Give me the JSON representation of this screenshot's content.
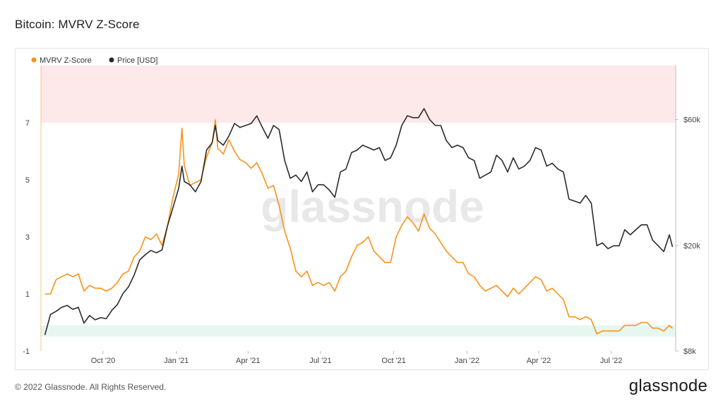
{
  "title": "Bitcoin: MVRV Z-Score",
  "copyright": "© 2022 Glassnode. All Rights Reserved.",
  "brand": "glassnode",
  "watermark": "glassnode",
  "chart_data": {
    "type": "line",
    "x_ticks": [
      "Oct '20",
      "Jan '21",
      "Apr '21",
      "Jul '21",
      "Oct '21",
      "Jan '22",
      "Apr '22",
      "Jul '22"
    ],
    "y_left_ticks": [
      "-1",
      "1",
      "3",
      "5",
      "7"
    ],
    "y_right_ticks": [
      "$8k",
      "$20k",
      "$60k"
    ],
    "zones": {
      "overvalued": {
        "from": 7,
        "to": 9,
        "color": "#fde8ea"
      },
      "undervalued": {
        "from": -0.5,
        "to": -0.1,
        "color": "#e7f7ef"
      }
    },
    "series": [
      {
        "name": "MVRV Z-Score",
        "color": "#f7931a",
        "axis": "left",
        "points": [
          [
            "2020-07-20",
            1.0
          ],
          [
            "2020-07-27",
            1.0
          ],
          [
            "2020-08-03",
            1.5
          ],
          [
            "2020-08-10",
            1.6
          ],
          [
            "2020-08-17",
            1.7
          ],
          [
            "2020-08-24",
            1.6
          ],
          [
            "2020-08-31",
            1.7
          ],
          [
            "2020-09-07",
            1.1
          ],
          [
            "2020-09-14",
            1.3
          ],
          [
            "2020-09-21",
            1.2
          ],
          [
            "2020-09-28",
            1.2
          ],
          [
            "2020-10-05",
            1.1
          ],
          [
            "2020-10-12",
            1.2
          ],
          [
            "2020-10-19",
            1.4
          ],
          [
            "2020-10-26",
            1.7
          ],
          [
            "2020-11-02",
            1.8
          ],
          [
            "2020-11-09",
            2.3
          ],
          [
            "2020-11-16",
            2.5
          ],
          [
            "2020-11-23",
            3.0
          ],
          [
            "2020-11-30",
            2.9
          ],
          [
            "2020-12-07",
            3.1
          ],
          [
            "2020-12-14",
            2.7
          ],
          [
            "2020-12-21",
            3.4
          ],
          [
            "2020-12-28",
            4.4
          ],
          [
            "2021-01-04",
            5.2
          ],
          [
            "2021-01-08",
            6.8
          ],
          [
            "2021-01-11",
            5.5
          ],
          [
            "2021-01-18",
            4.8
          ],
          [
            "2021-01-25",
            4.9
          ],
          [
            "2021-02-01",
            5.0
          ],
          [
            "2021-02-08",
            5.8
          ],
          [
            "2021-02-15",
            6.3
          ],
          [
            "2021-02-19",
            7.1
          ],
          [
            "2021-02-22",
            6.1
          ],
          [
            "2021-03-01",
            5.9
          ],
          [
            "2021-03-08",
            6.4
          ],
          [
            "2021-03-15",
            6.0
          ],
          [
            "2021-03-22",
            5.7
          ],
          [
            "2021-03-29",
            5.6
          ],
          [
            "2021-04-05",
            5.4
          ],
          [
            "2021-04-12",
            5.6
          ],
          [
            "2021-04-19",
            5.2
          ],
          [
            "2021-04-26",
            4.7
          ],
          [
            "2021-05-03",
            4.8
          ],
          [
            "2021-05-10",
            4.1
          ],
          [
            "2021-05-17",
            3.2
          ],
          [
            "2021-05-24",
            2.6
          ],
          [
            "2021-05-31",
            1.8
          ],
          [
            "2021-06-07",
            1.6
          ],
          [
            "2021-06-14",
            1.8
          ],
          [
            "2021-06-21",
            1.3
          ],
          [
            "2021-06-28",
            1.4
          ],
          [
            "2021-07-05",
            1.3
          ],
          [
            "2021-07-12",
            1.4
          ],
          [
            "2021-07-19",
            1.1
          ],
          [
            "2021-07-26",
            1.6
          ],
          [
            "2021-08-02",
            1.8
          ],
          [
            "2021-08-09",
            2.3
          ],
          [
            "2021-08-16",
            2.7
          ],
          [
            "2021-08-23",
            2.8
          ],
          [
            "2021-08-30",
            3.0
          ],
          [
            "2021-09-06",
            2.5
          ],
          [
            "2021-09-13",
            2.3
          ],
          [
            "2021-09-20",
            2.1
          ],
          [
            "2021-09-27",
            2.1
          ],
          [
            "2021-10-04",
            3.0
          ],
          [
            "2021-10-11",
            3.4
          ],
          [
            "2021-10-18",
            3.7
          ],
          [
            "2021-10-25",
            3.5
          ],
          [
            "2021-11-01",
            3.2
          ],
          [
            "2021-11-08",
            3.8
          ],
          [
            "2021-11-15",
            3.3
          ],
          [
            "2021-11-22",
            3.1
          ],
          [
            "2021-11-29",
            2.8
          ],
          [
            "2021-12-06",
            2.5
          ],
          [
            "2021-12-13",
            2.3
          ],
          [
            "2021-12-20",
            2.1
          ],
          [
            "2021-12-27",
            2.1
          ],
          [
            "2022-01-03",
            1.7
          ],
          [
            "2022-01-10",
            1.6
          ],
          [
            "2022-01-17",
            1.3
          ],
          [
            "2022-01-24",
            1.1
          ],
          [
            "2022-01-31",
            1.2
          ],
          [
            "2022-02-07",
            1.3
          ],
          [
            "2022-02-14",
            1.1
          ],
          [
            "2022-02-21",
            0.9
          ],
          [
            "2022-02-28",
            1.2
          ],
          [
            "2022-03-07",
            1.0
          ],
          [
            "2022-03-14",
            1.2
          ],
          [
            "2022-03-21",
            1.4
          ],
          [
            "2022-03-28",
            1.6
          ],
          [
            "2022-04-04",
            1.5
          ],
          [
            "2022-04-11",
            1.1
          ],
          [
            "2022-04-18",
            1.2
          ],
          [
            "2022-04-25",
            1.0
          ],
          [
            "2022-05-02",
            0.8
          ],
          [
            "2022-05-09",
            0.2
          ],
          [
            "2022-05-16",
            0.2
          ],
          [
            "2022-05-23",
            0.1
          ],
          [
            "2022-05-30",
            0.2
          ],
          [
            "2022-06-06",
            0.1
          ],
          [
            "2022-06-13",
            -0.4
          ],
          [
            "2022-06-20",
            -0.3
          ],
          [
            "2022-06-27",
            -0.3
          ],
          [
            "2022-07-04",
            -0.3
          ],
          [
            "2022-07-11",
            -0.3
          ],
          [
            "2022-07-18",
            -0.1
          ],
          [
            "2022-07-25",
            -0.1
          ],
          [
            "2022-08-01",
            -0.1
          ],
          [
            "2022-08-08",
            0.0
          ],
          [
            "2022-08-15",
            0.0
          ],
          [
            "2022-08-22",
            -0.2
          ],
          [
            "2022-08-29",
            -0.2
          ],
          [
            "2022-09-05",
            -0.3
          ],
          [
            "2022-09-12",
            -0.1
          ],
          [
            "2022-09-16",
            -0.2
          ]
        ]
      },
      {
        "name": "Price [USD]",
        "color": "#2b2b2b",
        "axis": "right",
        "points": [
          [
            "2020-07-20",
            9200
          ],
          [
            "2020-07-27",
            11000
          ],
          [
            "2020-08-03",
            11300
          ],
          [
            "2020-08-10",
            11700
          ],
          [
            "2020-08-17",
            11900
          ],
          [
            "2020-08-24",
            11500
          ],
          [
            "2020-08-31",
            11700
          ],
          [
            "2020-09-07",
            10200
          ],
          [
            "2020-09-14",
            10900
          ],
          [
            "2020-09-21",
            10500
          ],
          [
            "2020-09-28",
            10700
          ],
          [
            "2020-10-05",
            10600
          ],
          [
            "2020-10-12",
            11400
          ],
          [
            "2020-10-19",
            12000
          ],
          [
            "2020-10-26",
            13200
          ],
          [
            "2020-11-02",
            14000
          ],
          [
            "2020-11-09",
            15500
          ],
          [
            "2020-11-16",
            17700
          ],
          [
            "2020-11-23",
            18500
          ],
          [
            "2020-11-30",
            19200
          ],
          [
            "2020-12-07",
            18800
          ],
          [
            "2020-12-14",
            19300
          ],
          [
            "2020-12-21",
            23800
          ],
          [
            "2020-12-28",
            28000
          ],
          [
            "2021-01-04",
            33000
          ],
          [
            "2021-01-08",
            40000
          ],
          [
            "2021-01-11",
            35000
          ],
          [
            "2021-01-18",
            34000
          ],
          [
            "2021-01-25",
            32000
          ],
          [
            "2021-02-01",
            35000
          ],
          [
            "2021-02-08",
            46000
          ],
          [
            "2021-02-15",
            49000
          ],
          [
            "2021-02-19",
            57000
          ],
          [
            "2021-02-22",
            50000
          ],
          [
            "2021-03-01",
            48000
          ],
          [
            "2021-03-08",
            52000
          ],
          [
            "2021-03-15",
            58000
          ],
          [
            "2021-03-22",
            56000
          ],
          [
            "2021-03-29",
            57000
          ],
          [
            "2021-04-05",
            58000
          ],
          [
            "2021-04-12",
            62000
          ],
          [
            "2021-04-19",
            56000
          ],
          [
            "2021-04-26",
            51000
          ],
          [
            "2021-05-03",
            57000
          ],
          [
            "2021-05-10",
            55000
          ],
          [
            "2021-05-17",
            42000
          ],
          [
            "2021-05-24",
            36000
          ],
          [
            "2021-05-31",
            37000
          ],
          [
            "2021-06-07",
            35000
          ],
          [
            "2021-06-14",
            38000
          ],
          [
            "2021-06-21",
            32000
          ],
          [
            "2021-06-28",
            34000
          ],
          [
            "2021-07-05",
            34000
          ],
          [
            "2021-07-12",
            32500
          ],
          [
            "2021-07-19",
            30500
          ],
          [
            "2021-07-26",
            38000
          ],
          [
            "2021-08-02",
            39000
          ],
          [
            "2021-08-09",
            45000
          ],
          [
            "2021-08-16",
            46000
          ],
          [
            "2021-08-23",
            48000
          ],
          [
            "2021-08-30",
            47000
          ],
          [
            "2021-09-06",
            46000
          ],
          [
            "2021-09-13",
            47000
          ],
          [
            "2021-09-20",
            42000
          ],
          [
            "2021-09-27",
            43000
          ],
          [
            "2021-10-04",
            48000
          ],
          [
            "2021-10-11",
            57000
          ],
          [
            "2021-10-18",
            62000
          ],
          [
            "2021-10-25",
            61000
          ],
          [
            "2021-11-01",
            61000
          ],
          [
            "2021-11-08",
            66000
          ],
          [
            "2021-11-15",
            60000
          ],
          [
            "2021-11-22",
            57000
          ],
          [
            "2021-11-29",
            57000
          ],
          [
            "2021-12-06",
            50000
          ],
          [
            "2021-12-13",
            47000
          ],
          [
            "2021-12-20",
            48000
          ],
          [
            "2021-12-27",
            47000
          ],
          [
            "2022-01-03",
            43000
          ],
          [
            "2022-01-10",
            42000
          ],
          [
            "2022-01-17",
            36000
          ],
          [
            "2022-01-24",
            37000
          ],
          [
            "2022-01-31",
            38000
          ],
          [
            "2022-02-07",
            44000
          ],
          [
            "2022-02-14",
            42000
          ],
          [
            "2022-02-21",
            38000
          ],
          [
            "2022-02-28",
            43000
          ],
          [
            "2022-03-07",
            39000
          ],
          [
            "2022-03-14",
            40000
          ],
          [
            "2022-03-21",
            42000
          ],
          [
            "2022-03-28",
            47000
          ],
          [
            "2022-04-04",
            46000
          ],
          [
            "2022-04-11",
            40000
          ],
          [
            "2022-04-18",
            41000
          ],
          [
            "2022-04-25",
            39000
          ],
          [
            "2022-05-02",
            38000
          ],
          [
            "2022-05-09",
            30000
          ],
          [
            "2022-05-16",
            29500
          ],
          [
            "2022-05-23",
            29000
          ],
          [
            "2022-05-30",
            31000
          ],
          [
            "2022-06-06",
            29000
          ],
          [
            "2022-06-13",
            20000
          ],
          [
            "2022-06-20",
            20500
          ],
          [
            "2022-06-27",
            19500
          ],
          [
            "2022-07-04",
            20000
          ],
          [
            "2022-07-11",
            20000
          ],
          [
            "2022-07-18",
            23000
          ],
          [
            "2022-07-25",
            22000
          ],
          [
            "2022-08-01",
            23000
          ],
          [
            "2022-08-08",
            24000
          ],
          [
            "2022-08-15",
            24000
          ],
          [
            "2022-08-22",
            21000
          ],
          [
            "2022-08-29",
            20000
          ],
          [
            "2022-09-05",
            19000
          ],
          [
            "2022-09-12",
            22000
          ],
          [
            "2022-09-16",
            19800
          ]
        ]
      }
    ],
    "legend": [
      "MVRV Z-Score",
      "Price [USD]"
    ],
    "legend_position": "top-left",
    "x_range": [
      "2020-07-15",
      "2022-09-20"
    ],
    "y_left_range": [
      -1,
      9
    ],
    "y_right_range": [
      8000,
      96000
    ],
    "y_right_scale": "log",
    "grid": false
  }
}
